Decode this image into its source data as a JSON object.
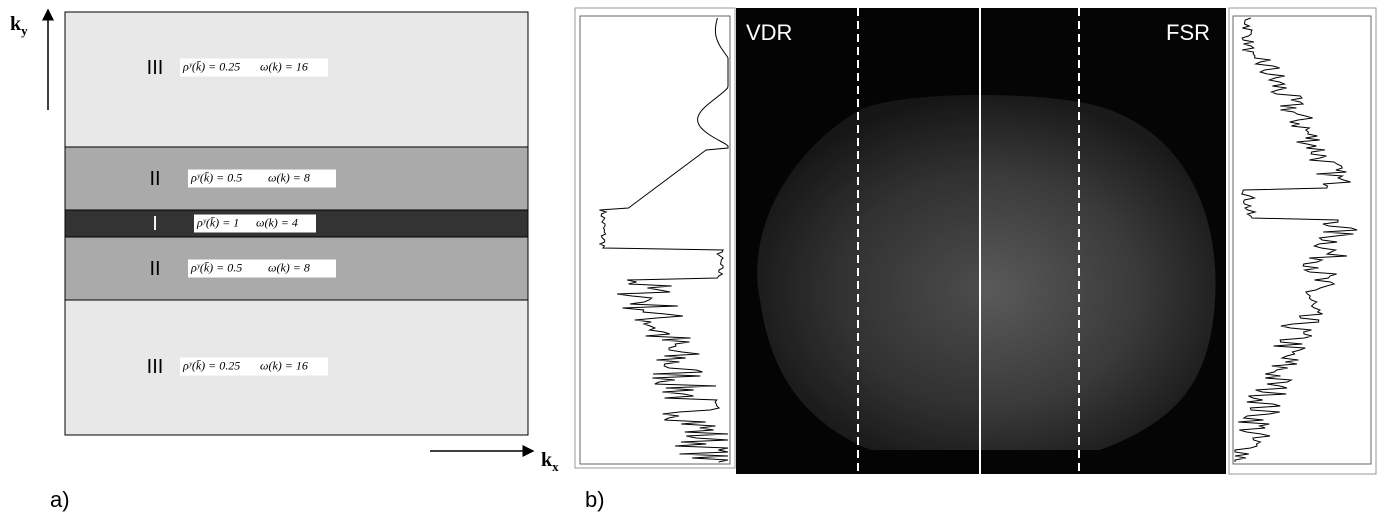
{
  "panel_a": {
    "axis_y": "k",
    "axis_y_sub": "y",
    "axis_x": "k",
    "axis_x_sub": "x",
    "caption": "a)",
    "regions": [
      {
        "label": "III",
        "rho": "ρʸ(k̄) = 0.25",
        "omega": "ω(k) = 16"
      },
      {
        "label": "II",
        "rho": "ρʸ(k̄) = 0.5",
        "omega": "ω(k) = 8"
      },
      {
        "label": "I",
        "rho": "ρʸ(k̄) = 1",
        "omega": "ω(k) = 4"
      },
      {
        "label": "II",
        "rho": "ρʸ(k̄) = 0.5",
        "omega": "ω(k) = 8"
      },
      {
        "label": "III",
        "rho": "ρʸ(k̄) = 0.25",
        "omega": "ω(k) = 16"
      }
    ]
  },
  "panel_b": {
    "left_label": "VDR",
    "right_label": "FSR",
    "caption": "b)"
  }
}
